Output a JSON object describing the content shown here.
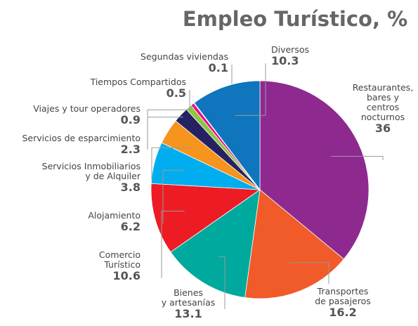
{
  "chart_data": {
    "type": "pie",
    "title": "Empleo Turístico, %",
    "categories": [
      "Restaurantes,\nbares y\ncentros\nnocturnos",
      "Transportes\nde pasajeros",
      "Bienes\ny artesanías",
      "Comercio\nTurístico",
      "Alojamiento",
      "Servicios Inmobiliarios\ny de Alquiler",
      "Servicios de esparcimiento",
      "Viajes y tour operadores",
      "Tiempos Compartidos",
      "Segundas viviendas",
      "Diversos"
    ],
    "values": [
      36,
      16.2,
      13.1,
      10.6,
      6.2,
      3.8,
      2.3,
      0.9,
      0.5,
      0.1,
      10.3
    ],
    "colors": [
      "#8e2a8f",
      "#f15a29",
      "#00a99d",
      "#ed1c24",
      "#00aeef",
      "#f7941d",
      "#262262",
      "#8dc63f",
      "#ec008c",
      "#662d91",
      "#0f75bc"
    ]
  }
}
